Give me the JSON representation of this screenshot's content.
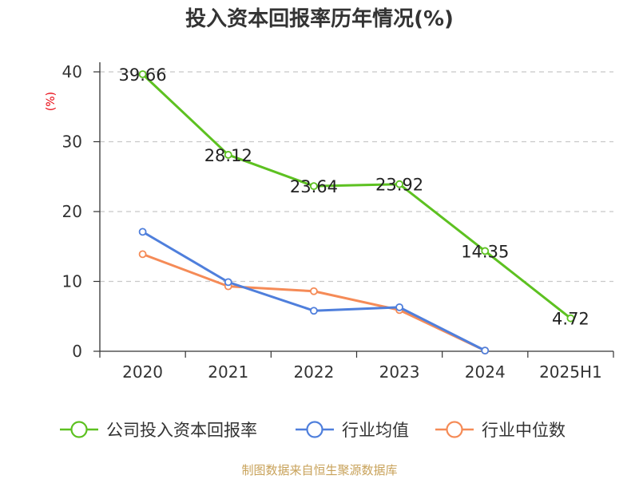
{
  "chart_data": {
    "type": "line",
    "title": "投入资本回报率历年情况(%)",
    "ylabel": "(%)",
    "xlabel": "",
    "categories": [
      "2020",
      "2021",
      "2022",
      "2023",
      "2024",
      "2025H1"
    ],
    "ylim": [
      0,
      40
    ],
    "yticks": [
      0,
      10,
      20,
      30,
      40
    ],
    "grid": true,
    "legend_position": "bottom",
    "series": [
      {
        "name": "公司投入资本回报率",
        "color": "#5dc121",
        "values": [
          39.66,
          28.12,
          23.64,
          23.92,
          14.35,
          4.72
        ],
        "labels": [
          "39.66",
          "28.12",
          "23.64",
          "23.92",
          "14.35",
          "4.72"
        ]
      },
      {
        "name": "行业均值",
        "color": "#4f7fdc",
        "values": [
          17.1,
          9.9,
          5.8,
          6.3,
          0.1,
          null
        ]
      },
      {
        "name": "行业中位数",
        "color": "#f58b57",
        "values": [
          13.9,
          9.3,
          8.6,
          5.9,
          0.1,
          null
        ]
      }
    ],
    "source": "制图数据来自恒生聚源数据库"
  }
}
